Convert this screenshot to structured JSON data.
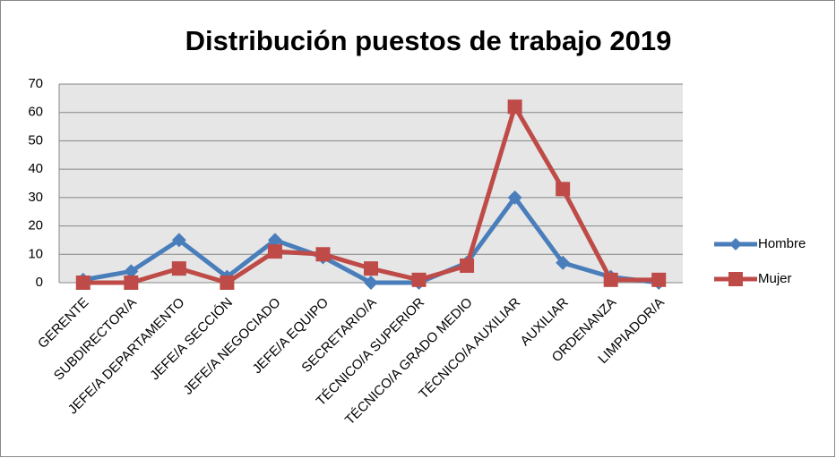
{
  "chart_data": {
    "type": "line",
    "title": "Distribución puestos de trabajo 2019",
    "categories": [
      "GERENTE",
      "SUBDIRECTOR/A",
      "JEFE/A DEPARTAMENTO",
      "JEFE/A SECCIÓN",
      "JEFE/A NEGOCIADO",
      "JEFE/A EQUIPO",
      "SECRETARIO/A",
      "TÉCNICO/A SUPERIOR",
      "TÉCNICO/A GRADO MEDIO",
      "TÉCNICO/A AUXILIAR",
      "AUXILIAR",
      "ORDENANZA",
      "LIMPIADOR/A"
    ],
    "series": [
      {
        "name": "Hombre",
        "color": "#4a7ebb",
        "marker": "diamond",
        "values": [
          1,
          4,
          15,
          2,
          15,
          9,
          0,
          0,
          7,
          30,
          7,
          2,
          0
        ]
      },
      {
        "name": "Mujer",
        "color": "#be4b48",
        "marker": "square",
        "values": [
          0,
          0,
          5,
          0,
          11,
          10,
          5,
          1,
          6,
          62,
          33,
          1,
          1
        ]
      }
    ],
    "ylim": [
      0,
      70
    ],
    "yticks": [
      0,
      10,
      20,
      30,
      40,
      50,
      60,
      70
    ],
    "grid": true,
    "legend": "right"
  }
}
